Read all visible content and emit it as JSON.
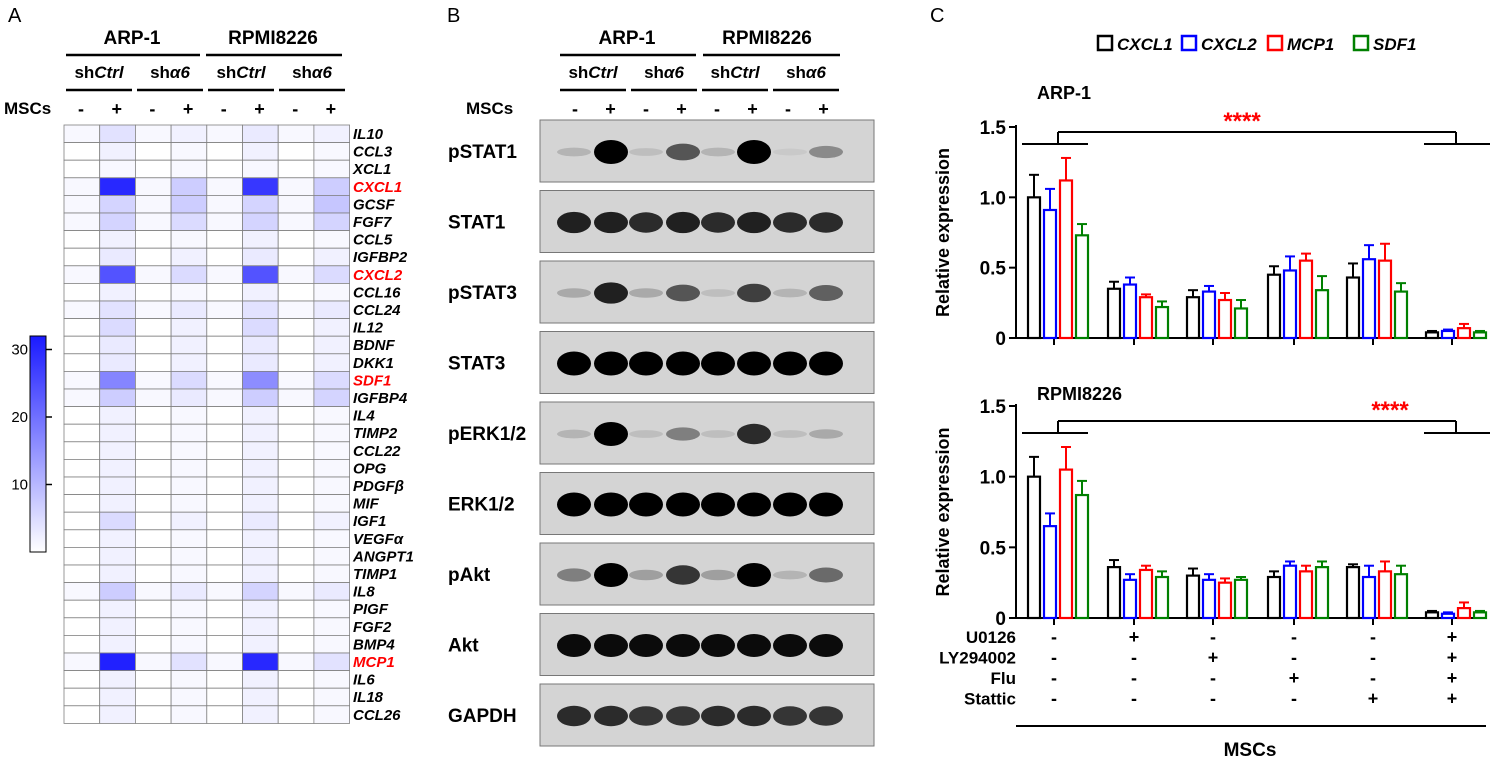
{
  "panels": {
    "a": "A",
    "b": "B",
    "c": "C"
  },
  "groups": [
    "ARP-1",
    "RPMI8226"
  ],
  "conditions": [
    {
      "prefix": "sh",
      "italic": "Ctrl"
    },
    {
      "prefix": "sh",
      "italic": "α6"
    },
    {
      "prefix": "sh",
      "italic": "Ctrl"
    },
    {
      "prefix": "sh",
      "italic": "α6"
    }
  ],
  "mscs_label": "MSCs",
  "mscs_signs": [
    "-",
    "+",
    "-",
    "+",
    "-",
    "+",
    "-",
    "+"
  ],
  "colors": {
    "high": "#1a1aff",
    "low": "#ffffff",
    "highlight": "#ff0000",
    "grid": "#808080"
  },
  "heatmap": {
    "scale": {
      "max": 32,
      "ticks": [
        "30",
        "20",
        "10"
      ],
      "tick_values": [
        30,
        20,
        10
      ]
    },
    "genes": [
      "IL10",
      "CCL3",
      "XCL1",
      "CXCL1",
      "GCSF",
      "FGF7",
      "CCL5",
      "IGFBP2",
      "CXCL2",
      "CCL16",
      "CCL24",
      "IL12",
      "BDNF",
      "DKK1",
      "SDF1",
      "IGFBP4",
      "IL4",
      "TIMP2",
      "CCL22",
      "OPG",
      "PDGFβ",
      "MIF",
      "IGF1",
      "VEGFα",
      "ANGPT1",
      "TIMP1",
      "IL8",
      "PIGF",
      "FGF2",
      "BMP4",
      "MCP1",
      "IL6",
      "IL18",
      "CCL26"
    ],
    "highlighted": [
      "CXCL1",
      "CXCL2",
      "SDF1",
      "MCP1"
    ],
    "values": [
      [
        1,
        4,
        1,
        2,
        1,
        3,
        1,
        2
      ],
      [
        0,
        2,
        0,
        1,
        0,
        2,
        0,
        1
      ],
      [
        0,
        1,
        0,
        1,
        0,
        1,
        0,
        1
      ],
      [
        1,
        30,
        1,
        7,
        1,
        28,
        1,
        7
      ],
      [
        1,
        6,
        1,
        7,
        1,
        6,
        1,
        8
      ],
      [
        1,
        6,
        1,
        5,
        1,
        6,
        1,
        6
      ],
      [
        0,
        2,
        0,
        1,
        0,
        2,
        0,
        1
      ],
      [
        0,
        3,
        0,
        2,
        0,
        3,
        0,
        2
      ],
      [
        1,
        24,
        1,
        5,
        1,
        24,
        1,
        5
      ],
      [
        0,
        2,
        0,
        1,
        0,
        2,
        0,
        1
      ],
      [
        1,
        4,
        1,
        3,
        1,
        4,
        1,
        3
      ],
      [
        0,
        5,
        0,
        2,
        0,
        5,
        0,
        2
      ],
      [
        0,
        3,
        0,
        2,
        0,
        3,
        0,
        2
      ],
      [
        0,
        3,
        0,
        2,
        0,
        3,
        0,
        2
      ],
      [
        1,
        17,
        1,
        5,
        1,
        16,
        1,
        5
      ],
      [
        1,
        7,
        1,
        3,
        1,
        7,
        1,
        6
      ],
      [
        0,
        2,
        0,
        1,
        0,
        2,
        0,
        1
      ],
      [
        0,
        2,
        0,
        1,
        0,
        2,
        0,
        1
      ],
      [
        0,
        2,
        0,
        1,
        0,
        2,
        0,
        1
      ],
      [
        0,
        2,
        0,
        1,
        0,
        2,
        0,
        1
      ],
      [
        0,
        2,
        0,
        1,
        0,
        2,
        0,
        1
      ],
      [
        0,
        2,
        0,
        1,
        0,
        2,
        0,
        1
      ],
      [
        0,
        5,
        0,
        2,
        0,
        3,
        0,
        2
      ],
      [
        0,
        2,
        0,
        1,
        0,
        2,
        0,
        1
      ],
      [
        0,
        2,
        0,
        1,
        0,
        2,
        0,
        1
      ],
      [
        0,
        2,
        0,
        1,
        0,
        2,
        0,
        1
      ],
      [
        1,
        7,
        1,
        3,
        1,
        6,
        1,
        3
      ],
      [
        0,
        2,
        0,
        1,
        0,
        2,
        0,
        1
      ],
      [
        0,
        2,
        0,
        1,
        0,
        2,
        0,
        1
      ],
      [
        0,
        2,
        0,
        1,
        0,
        2,
        0,
        1
      ],
      [
        1,
        31,
        1,
        4,
        1,
        30,
        1,
        4
      ],
      [
        0,
        2,
        0,
        1,
        0,
        2,
        0,
        1
      ],
      [
        0,
        2,
        0,
        1,
        0,
        2,
        0,
        1
      ],
      [
        0,
        2,
        0,
        1,
        0,
        2,
        0,
        1
      ]
    ]
  },
  "blot": {
    "proteins": [
      "pSTAT1",
      "STAT1",
      "pSTAT3",
      "STAT3",
      "pERK1/2",
      "ERK1/2",
      "pAkt",
      "Akt",
      "GAPDH"
    ],
    "intensity": [
      [
        0.15,
        1,
        0.1,
        0.6,
        0.15,
        1,
        0.05,
        0.35
      ],
      [
        0.85,
        0.85,
        0.8,
        0.85,
        0.8,
        0.85,
        0.8,
        0.8
      ],
      [
        0.2,
        0.85,
        0.2,
        0.6,
        0.1,
        0.7,
        0.15,
        0.55
      ],
      [
        1,
        1,
        1,
        1,
        1,
        1,
        1,
        1
      ],
      [
        0.15,
        1,
        0.1,
        0.4,
        0.1,
        0.8,
        0.1,
        0.2
      ],
      [
        1,
        1,
        1,
        1,
        1,
        1,
        1,
        1
      ],
      [
        0.4,
        1,
        0.25,
        0.75,
        0.25,
        1,
        0.15,
        0.5
      ],
      [
        0.95,
        0.95,
        0.95,
        0.95,
        0.95,
        0.95,
        0.95,
        0.95
      ],
      [
        0.8,
        0.8,
        0.75,
        0.75,
        0.8,
        0.8,
        0.75,
        0.75
      ]
    ]
  },
  "chart_data": [
    {
      "type": "bar",
      "title": "ARP-1",
      "ylabel": "Relative expression",
      "ylim": [
        0,
        1.5
      ],
      "yticks": [
        "0",
        "0.5",
        "1.0",
        "1.5"
      ],
      "ytick_values": [
        0,
        0.5,
        1.0,
        1.5
      ],
      "annotation": "****",
      "series": [
        {
          "name": "CXCL1",
          "color": "#000000",
          "values": [
            1.0,
            0.35,
            0.29,
            0.45,
            0.43,
            0.04
          ],
          "errors": [
            0.16,
            0.05,
            0.05,
            0.06,
            0.1,
            0.01
          ]
        },
        {
          "name": "CXCL2",
          "color": "#0000ff",
          "values": [
            0.91,
            0.38,
            0.33,
            0.48,
            0.56,
            0.05
          ],
          "errors": [
            0.15,
            0.05,
            0.04,
            0.1,
            0.1,
            0.01
          ]
        },
        {
          "name": "MCP1",
          "color": "#ff0000",
          "values": [
            1.12,
            0.29,
            0.27,
            0.55,
            0.55,
            0.07
          ],
          "errors": [
            0.16,
            0.02,
            0.05,
            0.05,
            0.12,
            0.03
          ]
        },
        {
          "name": "SDF1",
          "color": "#008000",
          "values": [
            0.73,
            0.22,
            0.21,
            0.34,
            0.33,
            0.04
          ],
          "errors": [
            0.08,
            0.04,
            0.06,
            0.1,
            0.06,
            0.01
          ]
        }
      ]
    },
    {
      "type": "bar",
      "title": "RPMI8226",
      "ylabel": "Relative expression",
      "ylim": [
        0,
        1.5
      ],
      "yticks": [
        "0",
        "0.5",
        "1.0",
        "1.5"
      ],
      "ytick_values": [
        0,
        0.5,
        1.0,
        1.5
      ],
      "annotation": "****",
      "series": [
        {
          "name": "CXCL1",
          "color": "#000000",
          "values": [
            1.0,
            0.36,
            0.3,
            0.29,
            0.36,
            0.04
          ],
          "errors": [
            0.14,
            0.05,
            0.05,
            0.04,
            0.02,
            0.01
          ]
        },
        {
          "name": "CXCL2",
          "color": "#0000ff",
          "values": [
            0.65,
            0.27,
            0.27,
            0.37,
            0.29,
            0.03
          ],
          "errors": [
            0.09,
            0.04,
            0.04,
            0.03,
            0.08,
            0.01
          ]
        },
        {
          "name": "MCP1",
          "color": "#ff0000",
          "values": [
            1.05,
            0.34,
            0.25,
            0.33,
            0.33,
            0.07
          ],
          "errors": [
            0.16,
            0.03,
            0.03,
            0.04,
            0.07,
            0.04
          ]
        },
        {
          "name": "SDF1",
          "color": "#008000",
          "values": [
            0.87,
            0.29,
            0.27,
            0.36,
            0.31,
            0.04
          ],
          "errors": [
            0.1,
            0.04,
            0.02,
            0.04,
            0.06,
            0.01
          ]
        }
      ]
    }
  ],
  "treatments": {
    "names": [
      "U0126",
      "LY294002",
      "Flu",
      "Stattic"
    ],
    "signs": [
      [
        "-",
        "+",
        "-",
        "-",
        "-",
        "+"
      ],
      [
        "-",
        "-",
        "+",
        "-",
        "-",
        "+"
      ],
      [
        "-",
        "-",
        "-",
        "+",
        "-",
        "+"
      ],
      [
        "-",
        "-",
        "-",
        "-",
        "+",
        "+"
      ]
    ],
    "footer": "MSCs"
  }
}
